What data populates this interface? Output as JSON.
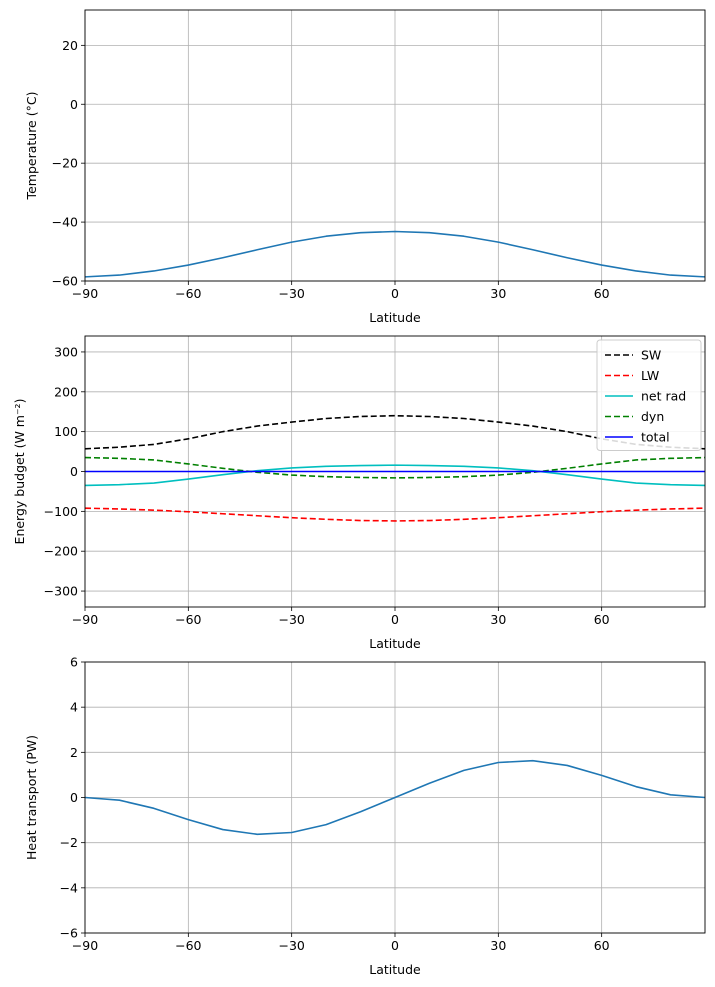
{
  "chart_data": [
    {
      "type": "line",
      "title": "",
      "xlabel": "Latitude",
      "ylabel": "Temperature (°C)",
      "xlim": [
        -90,
        90
      ],
      "ylim": [
        -60,
        32
      ],
      "xticks": [
        -90,
        -60,
        -30,
        0,
        30,
        60
      ],
      "yticks": [
        -60,
        -40,
        -20,
        0,
        20
      ],
      "grid": true,
      "legend": "none",
      "series": [
        {
          "color": "#1f77b4",
          "dash": "solid",
          "x": [
            -90,
            -80,
            -70,
            -60,
            -50,
            -40,
            -30,
            -20,
            -10,
            0,
            10,
            20,
            30,
            40,
            50,
            60,
            70,
            80,
            90
          ],
          "y": [
            -58.6,
            -58.0,
            -56.6,
            -54.6,
            -52.1,
            -49.4,
            -46.8,
            -44.8,
            -43.6,
            -43.2,
            -43.6,
            -44.8,
            -46.8,
            -49.4,
            -52.1,
            -54.6,
            -56.6,
            -58.0,
            -58.6
          ]
        }
      ]
    },
    {
      "type": "line",
      "title": "",
      "xlabel": "Latitude",
      "ylabel": "Energy budget (W m⁻²)",
      "xlim": [
        -90,
        90
      ],
      "ylim": [
        -340,
        340
      ],
      "xticks": [
        -90,
        -60,
        -30,
        0,
        30,
        60
      ],
      "yticks": [
        -300,
        -200,
        -100,
        0,
        100,
        200,
        300
      ],
      "grid": true,
      "legend": "top-right",
      "series": [
        {
          "name": "SW",
          "color": "#000000",
          "dash": "dashed",
          "x": [
            -90,
            -80,
            -70,
            -60,
            -50,
            -40,
            -30,
            -20,
            -10,
            0,
            10,
            20,
            30,
            40,
            50,
            60,
            70,
            80,
            90
          ],
          "y": [
            57,
            61,
            68,
            82,
            100,
            114,
            124,
            133,
            138,
            140,
            138,
            133,
            124,
            114,
            100,
            82,
            68,
            61,
            57
          ]
        },
        {
          "name": "LW",
          "color": "#ff0000",
          "dash": "dashed",
          "x": [
            -90,
            -80,
            -70,
            -60,
            -50,
            -40,
            -30,
            -20,
            -10,
            0,
            10,
            20,
            30,
            40,
            50,
            60,
            70,
            80,
            90
          ],
          "y": [
            -92,
            -94,
            -97,
            -101,
            -106,
            -111,
            -116,
            -120,
            -123,
            -124,
            -123,
            -120,
            -116,
            -111,
            -106,
            -101,
            -97,
            -94,
            -92
          ]
        },
        {
          "name": "net rad",
          "color": "#00bfbf",
          "dash": "solid",
          "x": [
            -90,
            -80,
            -70,
            -60,
            -50,
            -40,
            -30,
            -20,
            -10,
            0,
            10,
            20,
            30,
            40,
            50,
            60,
            70,
            80,
            90
          ],
          "y": [
            -35,
            -33,
            -29,
            -19,
            -8,
            2,
            9,
            13,
            15,
            16,
            15,
            13,
            9,
            2,
            -8,
            -19,
            -29,
            -33,
            -35
          ]
        },
        {
          "name": "dyn",
          "color": "#008000",
          "dash": "dashed",
          "x": [
            -90,
            -80,
            -70,
            -60,
            -50,
            -40,
            -30,
            -20,
            -10,
            0,
            10,
            20,
            30,
            40,
            50,
            60,
            70,
            80,
            90
          ],
          "y": [
            35,
            33,
            29,
            19,
            8,
            -2,
            -9,
            -13,
            -15,
            -16,
            -15,
            -13,
            -9,
            -2,
            8,
            19,
            29,
            33,
            35
          ]
        },
        {
          "name": "total",
          "color": "#0000ff",
          "dash": "solid",
          "x": [
            -90,
            90
          ],
          "y": [
            0,
            0
          ]
        }
      ]
    },
    {
      "type": "line",
      "title": "",
      "xlabel": "Latitude",
      "ylabel": "Heat transport (PW)",
      "xlim": [
        -90,
        90
      ],
      "ylim": [
        -6,
        6
      ],
      "xticks": [
        -90,
        -60,
        -30,
        0,
        30,
        60
      ],
      "yticks": [
        -6,
        -4,
        -2,
        0,
        2,
        4,
        6
      ],
      "grid": true,
      "legend": "none",
      "series": [
        {
          "color": "#1f77b4",
          "dash": "solid",
          "x": [
            -90,
            -80,
            -70,
            -60,
            -50,
            -40,
            -30,
            -20,
            -10,
            0,
            10,
            20,
            30,
            40,
            50,
            60,
            70,
            80,
            90
          ],
          "y": [
            0,
            -0.12,
            -0.48,
            -0.98,
            -1.42,
            -1.63,
            -1.55,
            -1.2,
            -0.63,
            0,
            0.63,
            1.2,
            1.55,
            1.63,
            1.42,
            0.98,
            0.48,
            0.12,
            0
          ]
        }
      ]
    }
  ]
}
